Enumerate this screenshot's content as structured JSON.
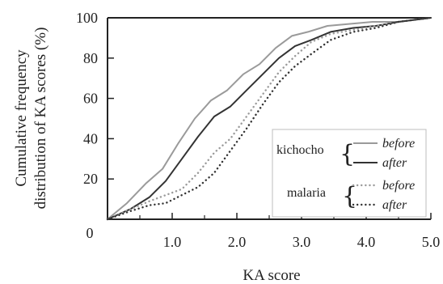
{
  "chart_data": {
    "type": "line",
    "xlabel": "KA score",
    "ylabel_line1": "Cumulative frequency",
    "ylabel_line2": "distribution of  KA scores (%)",
    "xlim": [
      0,
      5
    ],
    "ylim": [
      0,
      100
    ],
    "x_ticks": [
      "0",
      "1.0",
      "2.0",
      "3.0",
      "4.0",
      "5.0"
    ],
    "y_ticks": [
      "20",
      "40",
      "60",
      "80",
      "100"
    ],
    "grid": false,
    "legend_position": "lower-right",
    "legend_groups": [
      "kichocho",
      "malaria"
    ],
    "series": [
      {
        "name": "before",
        "group": "kichocho",
        "color": "#9a9a9a",
        "dash": "solid",
        "x": [
          0,
          0.3,
          0.6,
          0.85,
          1.1,
          1.35,
          1.6,
          1.85,
          2.1,
          2.35,
          2.6,
          2.85,
          3.1,
          3.4,
          3.75,
          4.1,
          4.5,
          5.0
        ],
        "y": [
          0,
          8,
          18,
          25,
          38,
          50,
          59,
          64,
          72,
          77,
          85,
          91,
          93,
          96,
          97,
          98,
          98,
          100
        ]
      },
      {
        "name": "after",
        "group": "kichocho",
        "color": "#333333",
        "dash": "solid",
        "x": [
          0,
          0.35,
          0.65,
          0.9,
          1.15,
          1.4,
          1.65,
          1.9,
          2.15,
          2.4,
          2.65,
          2.9,
          3.15,
          3.45,
          3.8,
          4.15,
          4.5,
          5.0
        ],
        "y": [
          0,
          5,
          11,
          19,
          30,
          41,
          51,
          56,
          64,
          72,
          80,
          86,
          89,
          93,
          95,
          96,
          98,
          100
        ]
      },
      {
        "name": "before",
        "group": "malaria",
        "color": "#9a9a9a",
        "dash": "dotted",
        "x": [
          0,
          0.35,
          0.65,
          0.9,
          1.15,
          1.4,
          1.65,
          1.9,
          2.15,
          2.4,
          2.65,
          2.9,
          3.15,
          3.45,
          3.8,
          4.15,
          4.5,
          5.0
        ],
        "y": [
          0,
          5,
          9,
          12,
          15,
          23,
          33,
          40,
          51,
          62,
          73,
          81,
          88,
          92,
          94,
          96,
          98,
          100
        ]
      },
      {
        "name": "after",
        "group": "malaria",
        "color": "#333333",
        "dash": "dotted",
        "x": [
          0,
          0.35,
          0.65,
          0.9,
          1.15,
          1.4,
          1.65,
          1.9,
          2.15,
          2.4,
          2.65,
          2.9,
          3.15,
          3.45,
          3.8,
          4.15,
          4.5,
          5.0
        ],
        "y": [
          0,
          4,
          7,
          8,
          12,
          16,
          23,
          34,
          45,
          57,
          68,
          76,
          82,
          89,
          93,
          95,
          98,
          100
        ]
      }
    ]
  }
}
